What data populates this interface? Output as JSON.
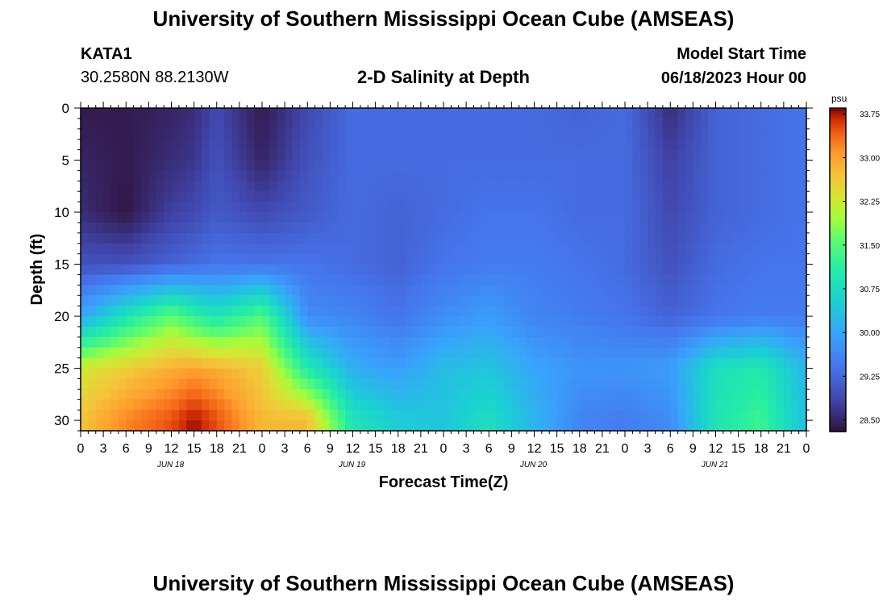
{
  "header": {
    "title": "University of Southern Mississippi Ocean Cube (AMSEAS)",
    "station_id": "KATA1",
    "coordinates": "30.2580N  88.2130W",
    "subtitle": "2-D Salinity at Depth",
    "model_start_label": "Model Start Time",
    "model_start_value": "06/18/2023 Hour 00"
  },
  "footer": {
    "title": "University of Southern Mississippi Ocean Cube (AMSEAS)"
  },
  "chart_data": {
    "type": "heatmap",
    "title": "2-D Salinity at Depth",
    "xlabel": "Forecast Time(Z)",
    "ylabel": "Depth (ft)",
    "x_tick_labels": [
      "0",
      "3",
      "6",
      "9",
      "12",
      "15",
      "18",
      "21",
      "0",
      "3",
      "6",
      "9",
      "12",
      "15",
      "18",
      "21",
      "0",
      "3",
      "6",
      "9",
      "12",
      "15",
      "18",
      "21",
      "0",
      "3",
      "6",
      "9",
      "12",
      "15",
      "18",
      "21",
      "0"
    ],
    "day_labels": [
      "JUN 18",
      "JUN 19",
      "JUN 20",
      "JUN 21"
    ],
    "y_ticks": [
      0,
      5,
      10,
      15,
      20,
      25,
      30
    ],
    "y_range": [
      0,
      31
    ],
    "x_range_hours": [
      0,
      96
    ],
    "colorbar": {
      "unit": "psu",
      "ticks": [
        28.5,
        29.25,
        30.0,
        30.75,
        31.5,
        32.25,
        33.0,
        33.75
      ],
      "tick_labels": [
        "28.50",
        "29.25",
        "30.00",
        "30.75",
        "31.50",
        "32.25",
        "33.00",
        "33.75"
      ],
      "range": [
        28.3,
        33.85
      ]
    },
    "hour_samples": [
      0,
      6,
      12,
      15,
      18,
      24,
      30,
      36,
      42,
      48,
      54,
      60,
      66,
      72,
      78,
      84,
      90,
      96
    ],
    "depth_samples": [
      0,
      5,
      10,
      15,
      20,
      25,
      30
    ],
    "salinity": [
      [
        28.4,
        28.4,
        28.5,
        28.6,
        28.9,
        28.4,
        28.9,
        29.3,
        29.3,
        29.3,
        29.3,
        29.3,
        29.2,
        29.3,
        28.6,
        29.2,
        29.3,
        29.4
      ],
      [
        28.5,
        28.4,
        28.6,
        28.7,
        29.0,
        28.5,
        29.0,
        29.3,
        29.3,
        29.3,
        29.3,
        29.3,
        29.3,
        29.3,
        28.8,
        29.2,
        29.3,
        29.4
      ],
      [
        28.6,
        28.35,
        28.8,
        28.9,
        29.1,
        28.9,
        29.1,
        29.3,
        29.2,
        29.3,
        29.4,
        29.4,
        29.3,
        29.3,
        28.9,
        29.2,
        29.3,
        29.4
      ],
      [
        29.0,
        29.0,
        29.2,
        29.3,
        29.4,
        29.4,
        29.4,
        29.3,
        29.2,
        29.4,
        29.5,
        29.5,
        29.4,
        29.3,
        29.0,
        29.3,
        29.4,
        29.4
      ],
      [
        30.0,
        30.9,
        31.6,
        31.2,
        30.9,
        31.5,
        29.7,
        29.6,
        29.4,
        29.7,
        29.9,
        29.6,
        29.5,
        29.4,
        29.2,
        29.4,
        29.5,
        29.5
      ],
      [
        32.3,
        32.6,
        32.9,
        33.0,
        32.9,
        32.6,
        31.0,
        30.1,
        29.9,
        30.3,
        30.4,
        30.0,
        29.8,
        29.8,
        29.9,
        30.8,
        31.0,
        30.2
      ],
      [
        32.7,
        33.2,
        33.5,
        33.8,
        33.5,
        32.8,
        32.8,
        30.9,
        30.5,
        30.4,
        30.8,
        30.2,
        29.6,
        29.5,
        29.7,
        30.9,
        31.3,
        30.3
      ]
    ]
  }
}
